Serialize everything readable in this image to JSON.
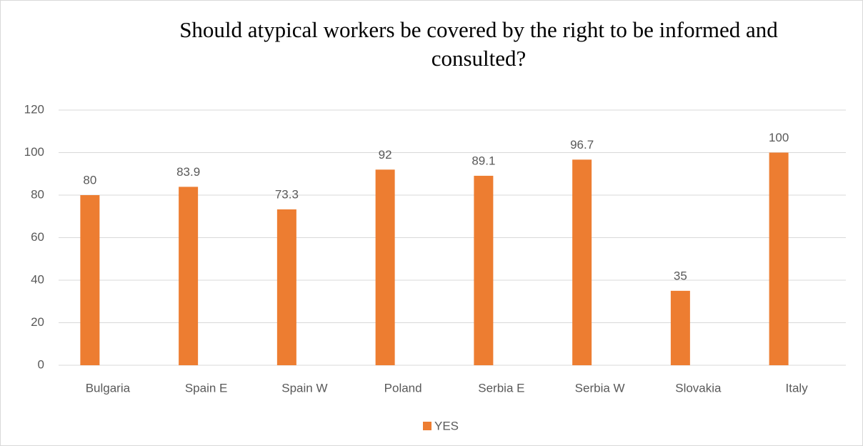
{
  "chart_data": {
    "type": "bar",
    "title": "Should atypical workers be covered by the right to be informed and consulted?",
    "categories": [
      "Bulgaria",
      "Spain E",
      "Spain W",
      "Poland",
      "Serbia E",
      "Serbia W",
      "Slovakia",
      "Italy"
    ],
    "series": [
      {
        "name": "YES",
        "color": "#ed7d31",
        "values": [
          80,
          83.9,
          73.3,
          92,
          89.1,
          96.7,
          35,
          100
        ]
      }
    ],
    "ylim": [
      0,
      120
    ],
    "yticks": [
      0,
      20,
      40,
      60,
      80,
      100,
      120
    ],
    "grid": true,
    "legend": "bottom"
  }
}
